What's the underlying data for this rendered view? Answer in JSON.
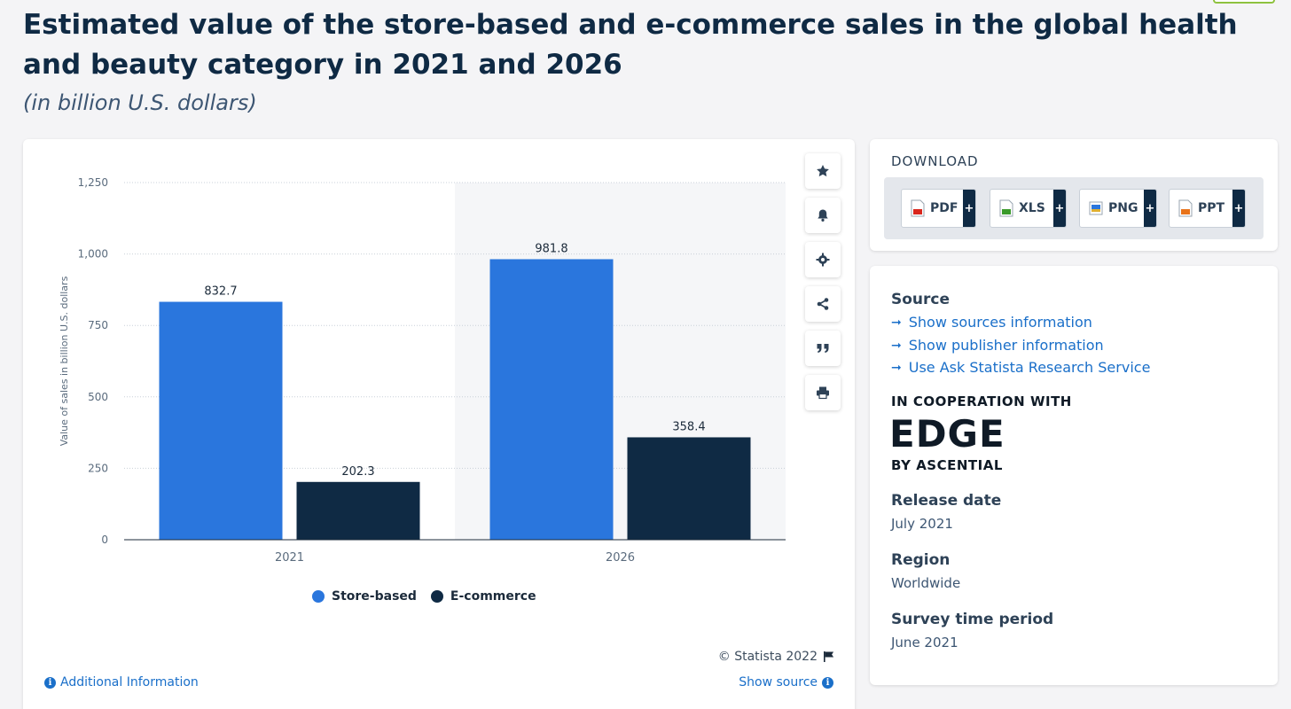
{
  "header": {
    "title": "Estimated value of the store-based and e-commerce sales in the global health and beauty category in 2021 and 2026",
    "subtitle": "(in billion U.S. dollars)"
  },
  "chart_data": {
    "type": "bar",
    "categories": [
      "2021",
      "2026"
    ],
    "series": [
      {
        "name": "Store-based",
        "values": [
          832.7,
          981.8
        ],
        "color": "#2a76dd"
      },
      {
        "name": "E-commerce",
        "values": [
          202.3,
          358.4
        ],
        "color": "#0f2a44"
      }
    ],
    "ylabel": "Value of sales in billion U.S. dollars",
    "xlabel": "",
    "ylim": [
      0,
      1250
    ],
    "yticks": [
      0,
      250,
      500,
      750,
      1000,
      1250
    ],
    "ytick_labels": [
      "0",
      "250",
      "500",
      "750",
      "1,000",
      "1,250"
    ],
    "value_labels": [
      [
        "832.7",
        "981.8"
      ],
      [
        "202.3",
        "358.4"
      ]
    ],
    "grid": true,
    "legend_position": "bottom-center"
  },
  "toolbar": {
    "icons": [
      "star-icon",
      "bell-icon",
      "gear-icon",
      "share-icon",
      "quote-icon",
      "print-icon"
    ]
  },
  "footer": {
    "copyright": "© Statista 2022",
    "additional_info": "Additional Information",
    "show_source": "Show source"
  },
  "download": {
    "title": "DOWNLOAD",
    "buttons": [
      {
        "label": "PDF",
        "icon": "pdf-icon",
        "color": "#d9261c"
      },
      {
        "label": "XLS",
        "icon": "xls-icon",
        "color": "#3a9a2a"
      },
      {
        "label": "PNG",
        "icon": "png-icon",
        "color": "#2a76dd"
      },
      {
        "label": "PPT",
        "icon": "ppt-icon",
        "color": "#e8731a"
      }
    ],
    "plus": "+"
  },
  "sidebar": {
    "source_heading": "Source",
    "links": [
      "Show sources information",
      "Show publisher information",
      "Use Ask Statista Research Service"
    ],
    "cooperation": "IN COOPERATION WITH",
    "logo_main": "EDGE",
    "logo_sub": "BY ASCENTIAL",
    "release_heading": "Release date",
    "release_value": "July 2021",
    "region_heading": "Region",
    "region_value": "Worldwide",
    "survey_heading": "Survey time period",
    "survey_value": "June 2021"
  }
}
